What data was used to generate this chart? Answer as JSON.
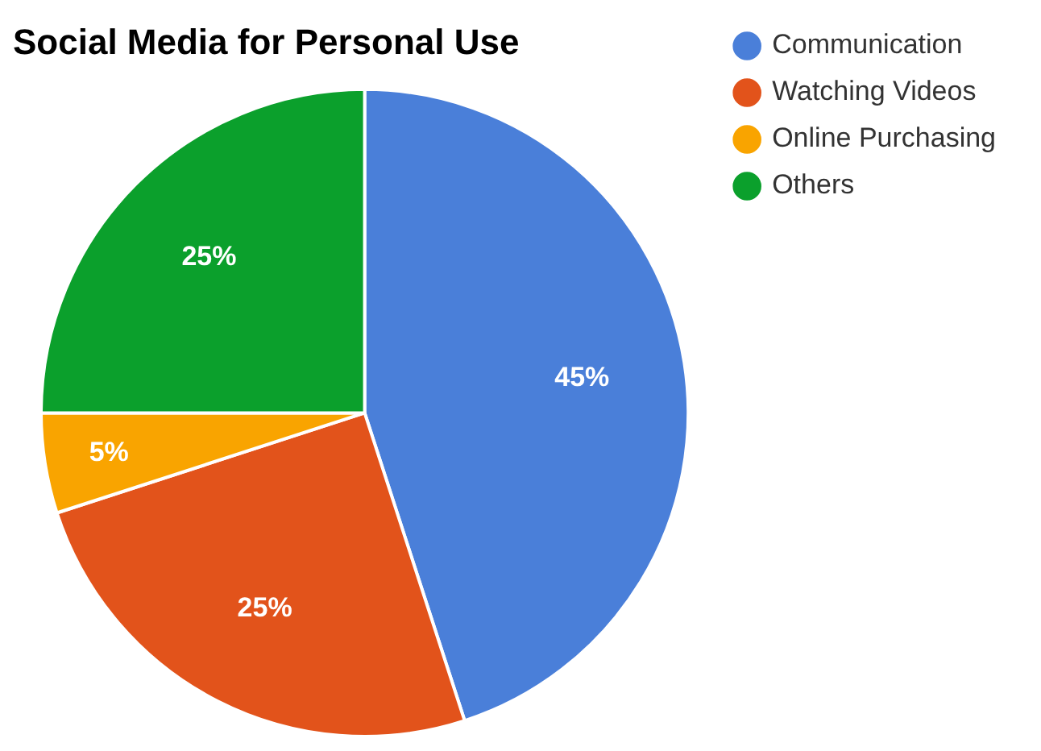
{
  "chart_data": {
    "type": "pie",
    "title": "Social Media for Personal Use",
    "categories": [
      "Communication",
      "Watching Videos",
      "Online Purchasing",
      "Others"
    ],
    "values": [
      45,
      25,
      5,
      25
    ],
    "colors": [
      "#4a7fd9",
      "#e2531b",
      "#f9a400",
      "#0ba02c"
    ],
    "value_labels": [
      "45%",
      "25%",
      "5%",
      "25%"
    ],
    "legend": "top right"
  }
}
